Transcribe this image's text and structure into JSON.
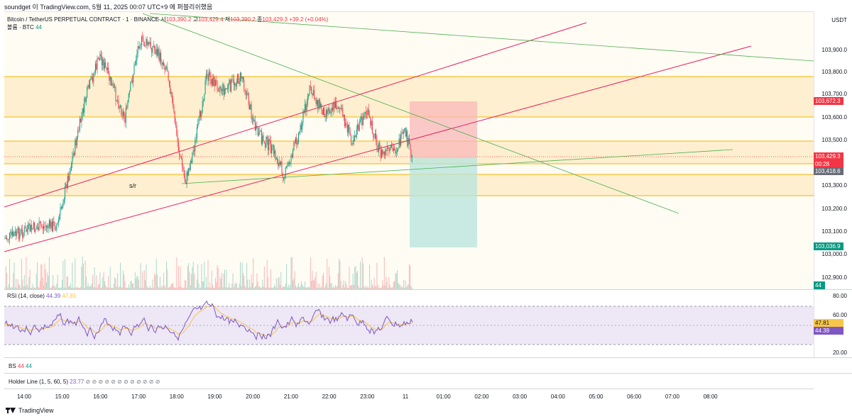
{
  "header": {
    "text": "soundget 이 TradingView.com, 5월 11, 2025 00:07 UTC+9 에 퍼블리쉬했음"
  },
  "legend": {
    "symbol": "Bitcoin / TetherUS PERPETUAL CONTRACT · 1 · BINANCE",
    "open_label": "시",
    "open": "103,390.2",
    "high_label": "고",
    "high": "103,429.4",
    "low_label": "저",
    "low": "103,390.2",
    "close_label": "종",
    "close": "103,429.3",
    "change": "+39.2 (+0.04%)",
    "volume_label": "볼륨 · BTC",
    "volume": "44"
  },
  "annotation": {
    "sr": "s/r"
  },
  "price_axis": {
    "currency": "USDT",
    "ticks": [
      "103,900.0",
      "103,800.0",
      "103,700.0",
      "103,600.0",
      "103,500.0",
      "103,300.0",
      "103,200.0",
      "103,100.0",
      "103,000.0",
      "102,900.0"
    ],
    "tags": {
      "upper_level": "103,672.3",
      "current": "103,429.3",
      "countdown": "00:28",
      "lower_level": "103,418.6",
      "target": "103,036.9",
      "volume": "44"
    }
  },
  "rsi": {
    "label": "RSI (14, close)",
    "value": "44.39",
    "ma_value": "47.81",
    "ticks": [
      "80.00",
      "60.00",
      "20.00"
    ]
  },
  "bs": {
    "label": "BS",
    "v1": "44",
    "v2": "44"
  },
  "holder": {
    "label": "Holder Line (1, 5, 60, 5)",
    "value": "23.77",
    "icons": "⊘ ⊘ ⊘ ⊘ ⊘ ⊘ ⊘ ⊘ ⊘ ⊘ ⊘ ⊘"
  },
  "time_axis": {
    "labels": [
      "14:00",
      "15:00",
      "16:00",
      "17:00",
      "18:00",
      "19:00",
      "20:00",
      "21:00",
      "22:00",
      "23:00",
      "11",
      "01:00",
      "02:00",
      "03:00",
      "04:00",
      "05:00",
      "06:00",
      "07:00",
      "08:00"
    ]
  },
  "footer": {
    "brand": "TradingView"
  },
  "colors": {
    "bull": "#089981",
    "bear": "#f23645",
    "zone": "#fdf0d5",
    "rsi_line": "#7e57c2",
    "rsi_ma": "#f7c548"
  }
}
